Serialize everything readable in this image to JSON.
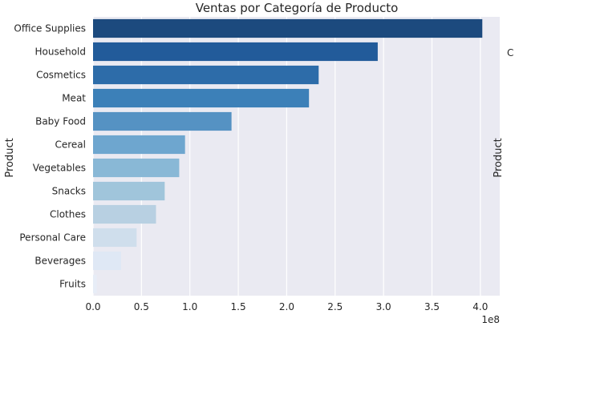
{
  "chart_data": {
    "type": "bar",
    "orientation": "horizontal",
    "title": "Ventas por Categoría de Producto",
    "ylabel": "Product",
    "xlabel": "",
    "x_scale_label": "1e8",
    "x_multiplier": 100000000,
    "xlim": [
      0,
      4.2
    ],
    "x_ticks": [
      "0.0",
      "0.5",
      "1.0",
      "1.5",
      "2.0",
      "2.5",
      "3.0",
      "3.5",
      "4.0"
    ],
    "grid": true,
    "legend": "none",
    "palette": "Blues_r",
    "categories": [
      "Office Supplies",
      "Household",
      "Cosmetics",
      "Meat",
      "Baby Food",
      "Cereal",
      "Vegetables",
      "Snacks",
      "Clothes",
      "Personal Care",
      "Beverages",
      "Fruits"
    ],
    "values": [
      4.02,
      2.94,
      2.33,
      2.23,
      1.43,
      0.95,
      0.89,
      0.74,
      0.65,
      0.45,
      0.29,
      0.04
    ],
    "colors": [
      "#1c4a7e",
      "#225b9a",
      "#2d6ca9",
      "#3c80b8",
      "#5592c3",
      "#6ea6cf",
      "#89b8d6",
      "#a0c5db",
      "#b8d0e2",
      "#cfdeec",
      "#dfe8f5",
      "#e7edf7"
    ],
    "second_panel": {
      "ylabel": "Product",
      "partial_label": "C"
    }
  }
}
